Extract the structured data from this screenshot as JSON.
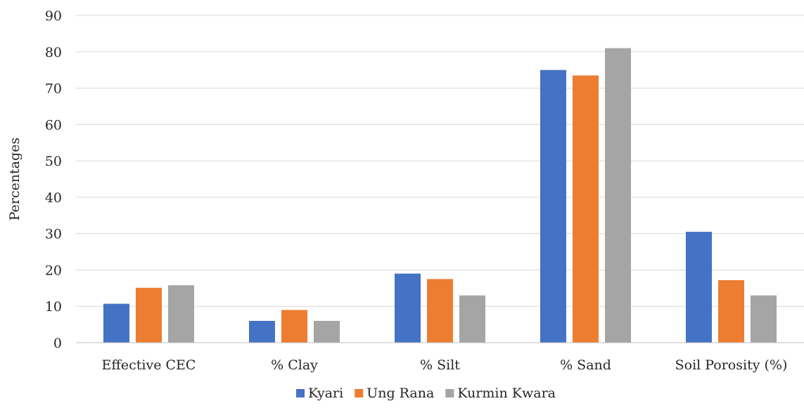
{
  "chart_data": {
    "type": "bar",
    "title": "",
    "xlabel": "",
    "ylabel": "Percentages",
    "ylim": [
      0,
      90
    ],
    "yticks": [
      0,
      10,
      20,
      30,
      40,
      50,
      60,
      70,
      80,
      90
    ],
    "grid": true,
    "legend_position": "bottom",
    "categories": [
      "Effective CEC",
      "% Clay",
      "% Silt",
      "% Sand",
      "Soil Porosity (%)"
    ],
    "series": [
      {
        "name": "Kyari",
        "color": "#4472C4",
        "values": [
          10.7,
          6,
          19,
          75,
          30.5
        ]
      },
      {
        "name": "Ung Rana",
        "color": "#ED7D31",
        "values": [
          15.1,
          9,
          17.5,
          73.5,
          17.2
        ]
      },
      {
        "name": "Kurmin Kwara",
        "color": "#A5A5A5",
        "values": [
          15.8,
          6,
          13,
          81,
          13
        ]
      }
    ]
  }
}
